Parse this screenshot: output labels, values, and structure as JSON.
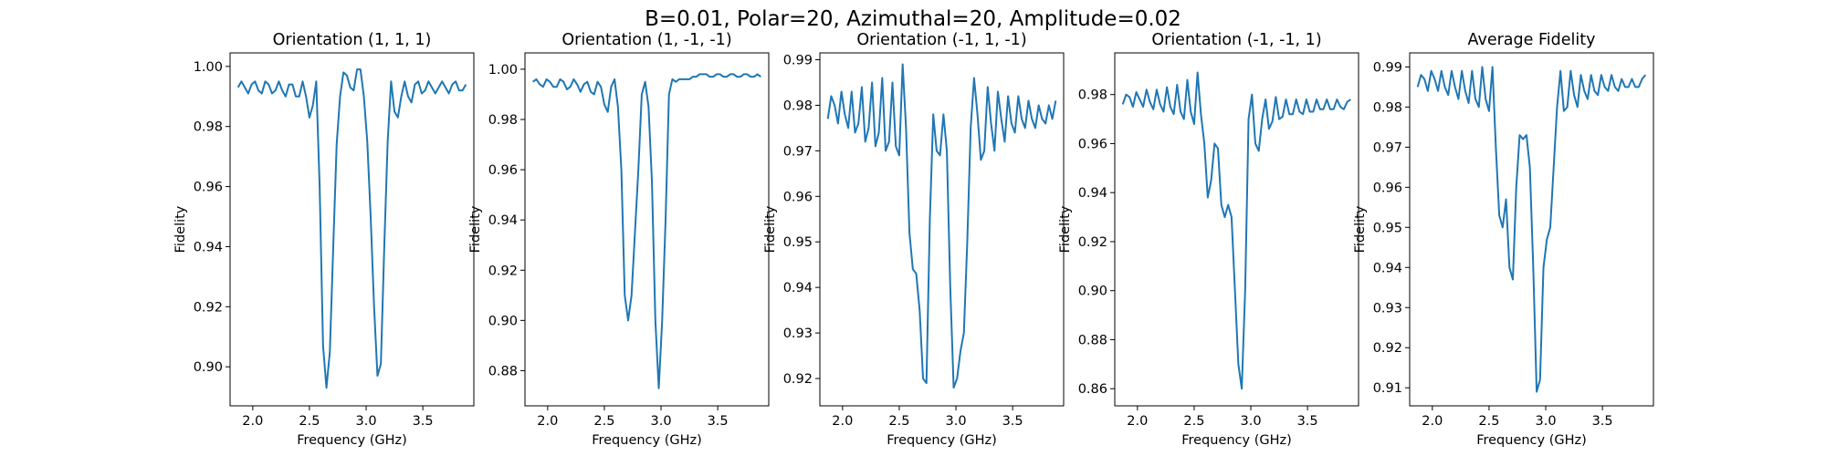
{
  "figure": {
    "suptitle": "B=0.01, Polar=20, Azimuthal=20, Amplitude=0.02",
    "line_color": "#1f77b4"
  },
  "chart_data": [
    {
      "type": "line",
      "title": "Orientation (1, 1, 1)",
      "xlabel": "Frequency (GHz)",
      "ylabel": "Fidelity",
      "xlim": [
        1.8,
        3.95
      ],
      "ylim": [
        0.887,
        1.0045
      ],
      "xticks": [
        2.0,
        2.5,
        3.0,
        3.5
      ],
      "xtick_labels": [
        "2.0",
        "2.5",
        "3.0",
        "3.5"
      ],
      "yticks": [
        0.9,
        0.92,
        0.94,
        0.96,
        0.98,
        1.0
      ],
      "ytick_labels": [
        "0.90",
        "0.92",
        "0.94",
        "0.96",
        "0.98",
        "1.00"
      ],
      "series": [
        {
          "x": [
            1.87,
            1.9,
            1.93,
            1.96,
            1.99,
            2.02,
            2.05,
            2.08,
            2.11,
            2.14,
            2.17,
            2.2,
            2.23,
            2.26,
            2.29,
            2.32,
            2.35,
            2.38,
            2.41,
            2.44,
            2.47,
            2.5,
            2.53,
            2.56,
            2.59,
            2.62,
            2.65,
            2.68,
            2.71,
            2.74,
            2.77,
            2.8,
            2.83,
            2.86,
            2.89,
            2.92,
            2.95,
            2.98,
            3.01,
            3.04,
            3.07,
            3.1,
            3.13,
            3.16,
            3.19,
            3.22,
            3.25,
            3.28,
            3.31,
            3.34,
            3.37,
            3.4,
            3.43,
            3.46,
            3.49,
            3.52,
            3.55,
            3.58,
            3.61,
            3.64,
            3.67,
            3.7,
            3.73,
            3.76,
            3.79,
            3.82,
            3.85,
            3.88
          ],
          "y": [
            0.993,
            0.995,
            0.993,
            0.991,
            0.994,
            0.995,
            0.992,
            0.991,
            0.995,
            0.994,
            0.991,
            0.992,
            0.995,
            0.992,
            0.99,
            0.994,
            0.994,
            0.99,
            0.99,
            0.995,
            0.99,
            0.983,
            0.987,
            0.995,
            0.96,
            0.907,
            0.893,
            0.905,
            0.94,
            0.974,
            0.99,
            0.998,
            0.997,
            0.993,
            0.992,
            0.999,
            0.999,
            0.99,
            0.975,
            0.95,
            0.92,
            0.897,
            0.901,
            0.94,
            0.975,
            0.995,
            0.985,
            0.983,
            0.99,
            0.995,
            0.99,
            0.988,
            0.994,
            0.995,
            0.991,
            0.992,
            0.995,
            0.993,
            0.991,
            0.993,
            0.995,
            0.993,
            0.991,
            0.994,
            0.995,
            0.992,
            0.992,
            0.994
          ]
        }
      ]
    },
    {
      "type": "line",
      "title": "Orientation (1, -1, -1)",
      "xlabel": "Frequency (GHz)",
      "ylabel": "Fidelity",
      "xlim": [
        1.8,
        3.95
      ],
      "ylim": [
        0.866,
        1.0065
      ],
      "xticks": [
        2.0,
        2.5,
        3.0,
        3.5
      ],
      "xtick_labels": [
        "2.0",
        "2.5",
        "3.0",
        "3.5"
      ],
      "yticks": [
        0.88,
        0.9,
        0.92,
        0.94,
        0.96,
        0.98,
        1.0
      ],
      "ytick_labels": [
        "0.88",
        "0.90",
        "0.92",
        "0.94",
        "0.96",
        "0.98",
        "1.00"
      ],
      "series": [
        {
          "x": [
            1.87,
            1.9,
            1.93,
            1.96,
            1.99,
            2.02,
            2.05,
            2.08,
            2.11,
            2.14,
            2.17,
            2.2,
            2.23,
            2.26,
            2.29,
            2.32,
            2.35,
            2.38,
            2.41,
            2.44,
            2.47,
            2.5,
            2.53,
            2.56,
            2.59,
            2.62,
            2.65,
            2.68,
            2.71,
            2.74,
            2.77,
            2.8,
            2.83,
            2.86,
            2.89,
            2.92,
            2.95,
            2.98,
            3.01,
            3.04,
            3.07,
            3.1,
            3.13,
            3.16,
            3.19,
            3.22,
            3.25,
            3.28,
            3.31,
            3.34,
            3.37,
            3.4,
            3.43,
            3.46,
            3.49,
            3.52,
            3.55,
            3.58,
            3.61,
            3.64,
            3.67,
            3.7,
            3.73,
            3.76,
            3.79,
            3.82,
            3.85,
            3.88
          ],
          "y": [
            0.995,
            0.996,
            0.994,
            0.993,
            0.996,
            0.995,
            0.993,
            0.993,
            0.996,
            0.995,
            0.992,
            0.993,
            0.996,
            0.994,
            0.991,
            0.994,
            0.995,
            0.991,
            0.99,
            0.995,
            0.993,
            0.986,
            0.983,
            0.993,
            0.996,
            0.985,
            0.96,
            0.91,
            0.9,
            0.91,
            0.935,
            0.96,
            0.99,
            0.995,
            0.985,
            0.955,
            0.9,
            0.873,
            0.9,
            0.94,
            0.99,
            0.996,
            0.995,
            0.996,
            0.996,
            0.996,
            0.996,
            0.997,
            0.997,
            0.998,
            0.998,
            0.998,
            0.997,
            0.997,
            0.998,
            0.998,
            0.997,
            0.997,
            0.998,
            0.998,
            0.997,
            0.997,
            0.998,
            0.998,
            0.997,
            0.997,
            0.998,
            0.997
          ]
        }
      ]
    },
    {
      "type": "line",
      "title": "Orientation (-1, 1, -1)",
      "xlabel": "Frequency (GHz)",
      "ylabel": "Fidelity",
      "xlim": [
        1.8,
        3.95
      ],
      "ylim": [
        0.914,
        0.9915
      ],
      "xticks": [
        2.0,
        2.5,
        3.0,
        3.5
      ],
      "xtick_labels": [
        "2.0",
        "2.5",
        "3.0",
        "3.5"
      ],
      "yticks": [
        0.92,
        0.93,
        0.94,
        0.95,
        0.96,
        0.97,
        0.98,
        0.99
      ],
      "ytick_labels": [
        "0.92",
        "0.93",
        "0.94",
        "0.95",
        "0.96",
        "0.97",
        "0.98",
        "0.99"
      ],
      "series": [
        {
          "x": [
            1.87,
            1.9,
            1.93,
            1.96,
            1.99,
            2.02,
            2.05,
            2.08,
            2.11,
            2.14,
            2.17,
            2.2,
            2.23,
            2.26,
            2.29,
            2.32,
            2.35,
            2.38,
            2.41,
            2.44,
            2.47,
            2.5,
            2.53,
            2.56,
            2.59,
            2.62,
            2.65,
            2.68,
            2.71,
            2.74,
            2.77,
            2.8,
            2.83,
            2.86,
            2.89,
            2.92,
            2.95,
            2.98,
            3.01,
            3.04,
            3.07,
            3.1,
            3.13,
            3.16,
            3.19,
            3.22,
            3.25,
            3.28,
            3.31,
            3.34,
            3.37,
            3.4,
            3.43,
            3.46,
            3.49,
            3.52,
            3.55,
            3.58,
            3.61,
            3.64,
            3.67,
            3.7,
            3.73,
            3.76,
            3.79,
            3.82,
            3.85,
            3.88
          ],
          "y": [
            0.977,
            0.982,
            0.98,
            0.976,
            0.983,
            0.978,
            0.975,
            0.983,
            0.974,
            0.976,
            0.984,
            0.972,
            0.975,
            0.985,
            0.971,
            0.974,
            0.986,
            0.97,
            0.972,
            0.985,
            0.971,
            0.969,
            0.989,
            0.975,
            0.952,
            0.944,
            0.943,
            0.935,
            0.92,
            0.919,
            0.955,
            0.978,
            0.97,
            0.969,
            0.978,
            0.97,
            0.94,
            0.918,
            0.92,
            0.926,
            0.93,
            0.95,
            0.975,
            0.986,
            0.978,
            0.968,
            0.97,
            0.984,
            0.976,
            0.97,
            0.983,
            0.977,
            0.972,
            0.982,
            0.976,
            0.974,
            0.982,
            0.977,
            0.975,
            0.981,
            0.977,
            0.975,
            0.98,
            0.977,
            0.976,
            0.98,
            0.977,
            0.981
          ]
        }
      ]
    },
    {
      "type": "line",
      "title": "Orientation (-1, -1, 1)",
      "xlabel": "Frequency (GHz)",
      "ylabel": "Fidelity",
      "xlim": [
        1.8,
        3.95
      ],
      "ylim": [
        0.853,
        0.997
      ],
      "xticks": [
        2.0,
        2.5,
        3.0,
        3.5
      ],
      "xtick_labels": [
        "2.0",
        "2.5",
        "3.0",
        "3.5"
      ],
      "yticks": [
        0.86,
        0.88,
        0.9,
        0.92,
        0.94,
        0.96,
        0.98
      ],
      "ytick_labels": [
        "0.86",
        "0.88",
        "0.90",
        "0.92",
        "0.94",
        "0.96",
        "0.98"
      ],
      "series": [
        {
          "x": [
            1.87,
            1.9,
            1.93,
            1.96,
            1.99,
            2.02,
            2.05,
            2.08,
            2.11,
            2.14,
            2.17,
            2.2,
            2.23,
            2.26,
            2.29,
            2.32,
            2.35,
            2.38,
            2.41,
            2.44,
            2.47,
            2.5,
            2.53,
            2.56,
            2.59,
            2.62,
            2.65,
            2.68,
            2.71,
            2.74,
            2.77,
            2.8,
            2.83,
            2.86,
            2.89,
            2.92,
            2.95,
            2.98,
            3.01,
            3.04,
            3.07,
            3.1,
            3.13,
            3.16,
            3.19,
            3.22,
            3.25,
            3.28,
            3.31,
            3.34,
            3.37,
            3.4,
            3.43,
            3.46,
            3.49,
            3.52,
            3.55,
            3.58,
            3.61,
            3.64,
            3.67,
            3.7,
            3.73,
            3.76,
            3.79,
            3.82,
            3.85,
            3.88
          ],
          "y": [
            0.976,
            0.98,
            0.979,
            0.975,
            0.981,
            0.978,
            0.975,
            0.982,
            0.977,
            0.974,
            0.982,
            0.976,
            0.973,
            0.983,
            0.975,
            0.972,
            0.984,
            0.973,
            0.97,
            0.986,
            0.973,
            0.968,
            0.989,
            0.972,
            0.96,
            0.938,
            0.945,
            0.96,
            0.958,
            0.935,
            0.93,
            0.935,
            0.93,
            0.9,
            0.87,
            0.86,
            0.9,
            0.97,
            0.98,
            0.96,
            0.957,
            0.97,
            0.978,
            0.966,
            0.969,
            0.979,
            0.97,
            0.971,
            0.978,
            0.972,
            0.972,
            0.978,
            0.973,
            0.972,
            0.978,
            0.973,
            0.973,
            0.978,
            0.974,
            0.974,
            0.978,
            0.974,
            0.974,
            0.978,
            0.975,
            0.974,
            0.977,
            0.978
          ]
        }
      ]
    },
    {
      "type": "line",
      "title": "Average Fidelity",
      "xlabel": "Frequency (GHz)",
      "ylabel": "Fidelity",
      "xlim": [
        1.8,
        3.95
      ],
      "ylim": [
        0.9055,
        0.9935
      ],
      "xticks": [
        2.0,
        2.5,
        3.0,
        3.5
      ],
      "xtick_labels": [
        "2.0",
        "2.5",
        "3.0",
        "3.5"
      ],
      "yticks": [
        0.91,
        0.92,
        0.93,
        0.94,
        0.95,
        0.96,
        0.97,
        0.98,
        0.99
      ],
      "ytick_labels": [
        "0.91",
        "0.92",
        "0.93",
        "0.94",
        "0.95",
        "0.96",
        "0.97",
        "0.98",
        "0.99"
      ],
      "series": [
        {
          "x": [
            1.87,
            1.9,
            1.93,
            1.96,
            1.99,
            2.02,
            2.05,
            2.08,
            2.11,
            2.14,
            2.17,
            2.2,
            2.23,
            2.26,
            2.29,
            2.32,
            2.35,
            2.38,
            2.41,
            2.44,
            2.47,
            2.5,
            2.53,
            2.56,
            2.59,
            2.62,
            2.65,
            2.68,
            2.71,
            2.74,
            2.77,
            2.8,
            2.83,
            2.86,
            2.89,
            2.92,
            2.95,
            2.98,
            3.01,
            3.04,
            3.07,
            3.1,
            3.13,
            3.16,
            3.19,
            3.22,
            3.25,
            3.28,
            3.31,
            3.34,
            3.37,
            3.4,
            3.43,
            3.46,
            3.49,
            3.52,
            3.55,
            3.58,
            3.61,
            3.64,
            3.67,
            3.7,
            3.73,
            3.76,
            3.79,
            3.82,
            3.85,
            3.88
          ],
          "y": [
            0.985,
            0.988,
            0.987,
            0.984,
            0.989,
            0.987,
            0.984,
            0.989,
            0.985,
            0.983,
            0.989,
            0.985,
            0.982,
            0.989,
            0.984,
            0.981,
            0.989,
            0.982,
            0.98,
            0.99,
            0.982,
            0.979,
            0.99,
            0.97,
            0.953,
            0.95,
            0.957,
            0.94,
            0.937,
            0.96,
            0.973,
            0.972,
            0.973,
            0.965,
            0.94,
            0.909,
            0.912,
            0.94,
            0.947,
            0.95,
            0.965,
            0.98,
            0.989,
            0.979,
            0.98,
            0.989,
            0.983,
            0.98,
            0.988,
            0.984,
            0.982,
            0.988,
            0.984,
            0.983,
            0.988,
            0.985,
            0.984,
            0.988,
            0.985,
            0.984,
            0.987,
            0.985,
            0.985,
            0.987,
            0.985,
            0.985,
            0.987,
            0.988
          ]
        }
      ]
    }
  ]
}
